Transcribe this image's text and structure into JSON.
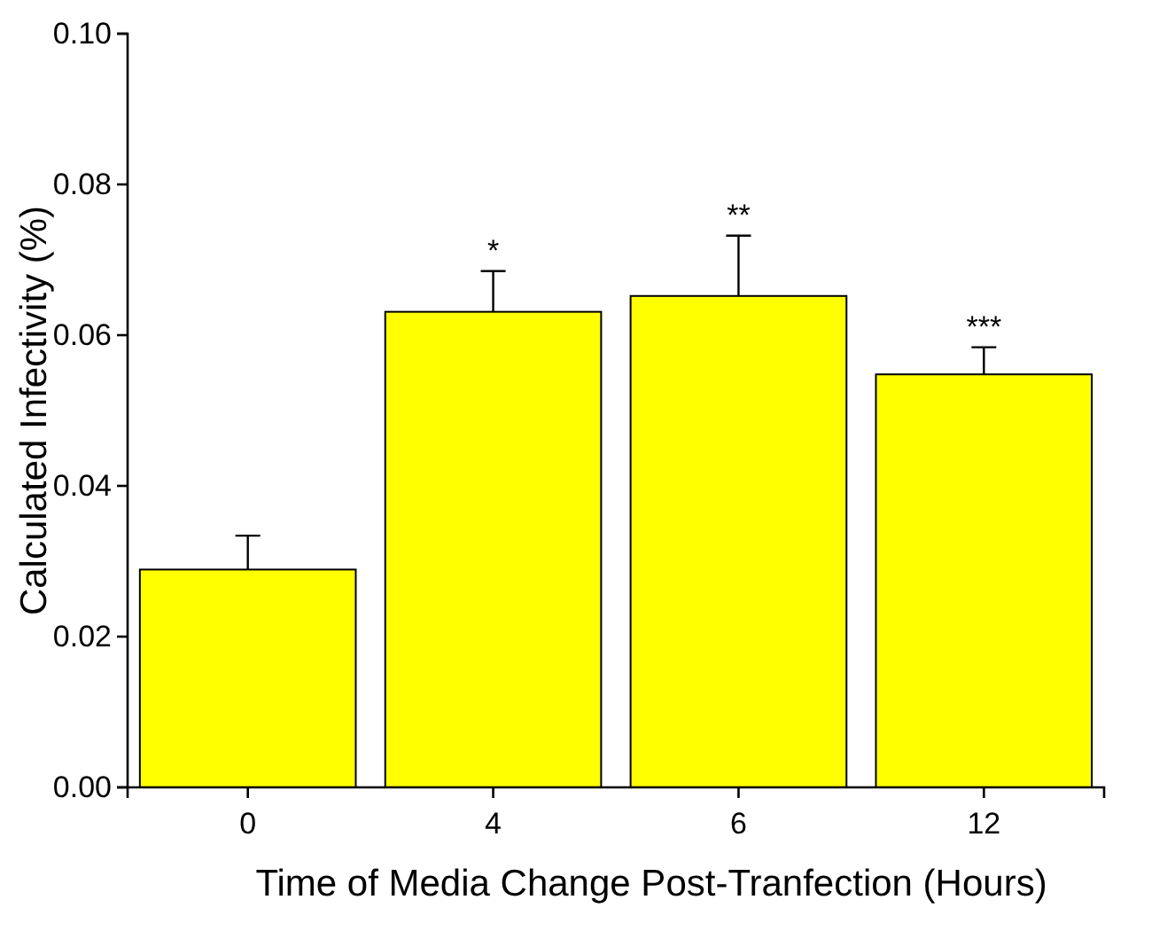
{
  "chart_data": {
    "type": "bar",
    "xlabel": "Time of Media Change Post-Tranfection (Hours)",
    "ylabel": "Calculated Infectivity (%)",
    "categories": [
      "0",
      "4",
      "6",
      "12"
    ],
    "values": [
      0.0289,
      0.0631,
      0.0652,
      0.0548
    ],
    "errors": [
      [
        0.0289,
        0.0334
      ],
      [
        0.0631,
        0.0685
      ],
      [
        0.0652,
        0.0732
      ],
      [
        0.0548,
        0.0584
      ]
    ],
    "color": "#ffff00",
    "ylim": [
      0,
      0.1
    ],
    "yticks": [
      {
        "value": 0,
        "label": "0.00"
      },
      {
        "value": 0.02,
        "label": "0.02"
      },
      {
        "value": 0.04,
        "label": "0.04"
      },
      {
        "value": 0.06,
        "label": "0.06"
      },
      {
        "value": 0.08,
        "label": "0.08"
      },
      {
        "value": 0.1,
        "label": "0.10"
      }
    ],
    "grid": false,
    "annotations": [
      "*",
      "**",
      "***"
    ]
  }
}
